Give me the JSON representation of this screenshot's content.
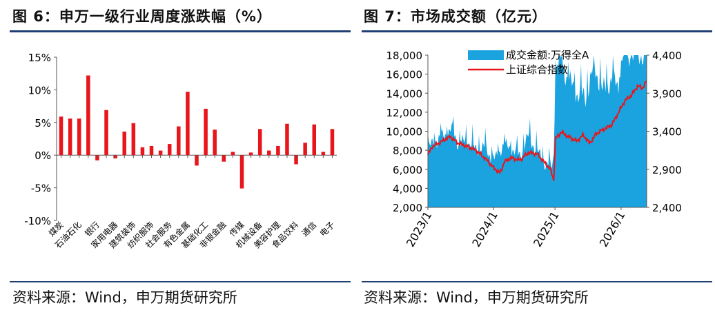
{
  "left": {
    "title": "图 6：申万一级行业周度涨跌幅（%）",
    "source": "资料来源：Wind，申万期货研究所"
  },
  "right": {
    "title": "图 7：市场成交额（亿元）",
    "source": "资料来源：Wind，申万期货研究所"
  },
  "colors": {
    "rule": "#1f3f74",
    "bar": "#e8151b",
    "area": "#1aa3de",
    "line": "#e8151b"
  },
  "chart_data": [
    {
      "type": "bar",
      "title": "申万一级行业周度涨跌幅（%）",
      "ylim": [
        -10,
        15
      ],
      "yticks": [
        15,
        10,
        5,
        0,
        -5,
        -10
      ],
      "ytick_labels": [
        "15%",
        "10%",
        "5%",
        "0%",
        "-5%",
        "-10%"
      ],
      "categories": [
        "煤炭",
        "石油石化",
        "银行",
        "家用电器",
        "建筑装饰",
        "纺织服饰",
        "社会服务",
        "有色金属",
        "基础化工",
        "非银金融",
        "传媒",
        "机械设备",
        "美容护理",
        "食品饮料",
        "通信",
        "电子"
      ],
      "bars": [
        5.9,
        5.6,
        5.6,
        12.2,
        -0.8,
        6.9,
        -0.5,
        3.6,
        4.9,
        1.2,
        1.4,
        0.7,
        1.7,
        4.4,
        9.7,
        -1.6,
        7.1,
        3.9,
        -1.0,
        0.5,
        -5.1,
        0.4,
        4.0,
        0.7,
        1.4,
        4.8,
        -1.4,
        1.9,
        4.7,
        0.5,
        4.0
      ]
    },
    {
      "type": "area+line",
      "title": "市场成交额（亿元）",
      "series": [
        {
          "name": "成交金额:万得全A",
          "type": "area",
          "axis": "left"
        },
        {
          "name": "上证综合指数",
          "type": "line",
          "axis": "right"
        }
      ],
      "left_ylim": [
        2000,
        18000
      ],
      "left_ticks": [
        "2,000",
        "4,000",
        "6,000",
        "8,000",
        "10,000",
        "12,000",
        "14,000",
        "16,000",
        "18,000"
      ],
      "right_ylim": [
        2400,
        4400
      ],
      "right_ticks": [
        "2,400",
        "2,900",
        "3,400",
        "3,900",
        "4,400"
      ],
      "x_ticks": [
        "2023/1",
        "2024/1",
        "2025/1",
        "2026/1"
      ],
      "x_tick_pos": [
        0.0,
        0.301,
        0.581,
        0.883
      ],
      "volume_anchors": [
        [
          0,
          8200
        ],
        [
          0.03,
          8800
        ],
        [
          0.07,
          9500
        ],
        [
          0.11,
          10200
        ],
        [
          0.14,
          8600
        ],
        [
          0.18,
          9000
        ],
        [
          0.22,
          8000
        ],
        [
          0.26,
          8300
        ],
        [
          0.29,
          7300
        ],
        [
          0.31,
          7000
        ],
        [
          0.34,
          8500
        ],
        [
          0.38,
          8200
        ],
        [
          0.42,
          7400
        ],
        [
          0.46,
          9500
        ],
        [
          0.5,
          7800
        ],
        [
          0.54,
          6500
        ],
        [
          0.565,
          6200
        ],
        [
          0.575,
          7500
        ],
        [
          0.582,
          16000
        ],
        [
          0.6,
          17500
        ],
        [
          0.64,
          15500
        ],
        [
          0.68,
          14000
        ],
        [
          0.72,
          13500
        ],
        [
          0.76,
          16800
        ],
        [
          0.8,
          14200
        ],
        [
          0.84,
          15500
        ],
        [
          0.875,
          14500
        ],
        [
          0.885,
          18000
        ],
        [
          0.95,
          18000
        ],
        [
          1.0,
          18000
        ]
      ],
      "index_anchors": [
        [
          0,
          3090
        ],
        [
          0.02,
          3200
        ],
        [
          0.06,
          3260
        ],
        [
          0.1,
          3330
        ],
        [
          0.14,
          3240
        ],
        [
          0.18,
          3200
        ],
        [
          0.22,
          3150
        ],
        [
          0.27,
          3020
        ],
        [
          0.3,
          2920
        ],
        [
          0.33,
          2850
        ],
        [
          0.35,
          3000
        ],
        [
          0.38,
          3050
        ],
        [
          0.42,
          3020
        ],
        [
          0.46,
          3120
        ],
        [
          0.5,
          3100
        ],
        [
          0.53,
          3000
        ],
        [
          0.56,
          2900
        ],
        [
          0.575,
          2760
        ],
        [
          0.583,
          3300
        ],
        [
          0.61,
          3390
        ],
        [
          0.64,
          3330
        ],
        [
          0.68,
          3270
        ],
        [
          0.71,
          3350
        ],
        [
          0.74,
          3240
        ],
        [
          0.77,
          3370
        ],
        [
          0.8,
          3420
        ],
        [
          0.84,
          3480
        ],
        [
          0.87,
          3640
        ],
        [
          0.9,
          3800
        ],
        [
          0.93,
          3870
        ],
        [
          0.96,
          4000
        ],
        [
          0.98,
          3960
        ],
        [
          1.0,
          4060
        ]
      ]
    }
  ]
}
